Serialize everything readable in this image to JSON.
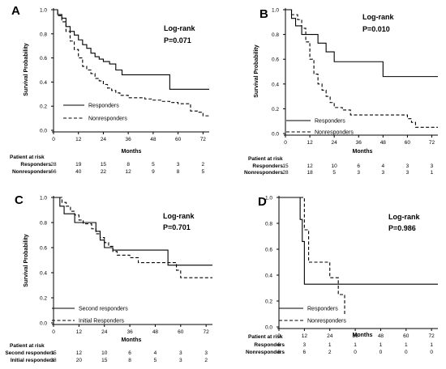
{
  "chart_data": [
    {
      "type": "line",
      "panel_label": "A",
      "annotation": "Log-rank",
      "pvalue": "P=0.071",
      "xlabel": "Months",
      "ylabel": "Survival Probability",
      "xlim": [
        0,
        75
      ],
      "ylim": [
        0,
        1.0
      ],
      "xticks": [
        "0",
        "12",
        "24",
        "36",
        "48",
        "60",
        "72"
      ],
      "yticks": [
        "0.0",
        "0.2",
        "0.4",
        "0.6",
        "0.8",
        "1.0"
      ],
      "series": [
        {
          "name": "Responders",
          "style": "solid",
          "x": [
            0,
            2,
            4,
            6,
            8,
            10,
            12,
            14,
            16,
            18,
            20,
            22,
            24,
            27,
            30,
            33,
            36,
            48,
            56,
            75
          ],
          "y": [
            1.0,
            0.96,
            0.93,
            0.86,
            0.82,
            0.79,
            0.75,
            0.71,
            0.68,
            0.64,
            0.61,
            0.59,
            0.57,
            0.55,
            0.5,
            0.46,
            0.46,
            0.46,
            0.34,
            0.34
          ]
        },
        {
          "name": "Nonresponders",
          "style": "dashed",
          "x": [
            0,
            2,
            4,
            6,
            8,
            10,
            12,
            14,
            16,
            18,
            20,
            22,
            24,
            26,
            28,
            30,
            32,
            36,
            40,
            44,
            48,
            52,
            56,
            60,
            66,
            70,
            72,
            75
          ],
          "y": [
            1.0,
            0.95,
            0.9,
            0.82,
            0.74,
            0.67,
            0.6,
            0.53,
            0.5,
            0.47,
            0.43,
            0.41,
            0.38,
            0.35,
            0.33,
            0.31,
            0.29,
            0.27,
            0.27,
            0.26,
            0.25,
            0.24,
            0.23,
            0.22,
            0.16,
            0.15,
            0.12,
            0.12
          ]
        }
      ],
      "risk_table": {
        "header": "Patient at risk",
        "rows": [
          {
            "label": "Responders",
            "values": [
              "28",
              "19",
              "15",
              "8",
              "5",
              "3",
              "2"
            ]
          },
          {
            "label": "Nonresponders",
            "values": [
              "66",
              "40",
              "22",
              "12",
              "9",
              "8",
              "5"
            ]
          }
        ]
      }
    },
    {
      "type": "line",
      "panel_label": "B",
      "annotation": "Log-rank",
      "pvalue": "P=0.010",
      "xlabel": "Months",
      "ylabel": "Survival Probability",
      "xlim": [
        0,
        75
      ],
      "ylim": [
        0,
        1.0
      ],
      "xticks": [
        "0",
        "12",
        "24",
        "36",
        "48",
        "60",
        "72"
      ],
      "yticks": [
        "0.0",
        "0.2",
        "0.4",
        "0.6",
        "0.8",
        "1.0"
      ],
      "series": [
        {
          "name": "Responders",
          "style": "solid",
          "x": [
            0,
            3,
            5,
            8,
            12,
            16,
            20,
            24,
            30,
            36,
            48,
            75
          ],
          "y": [
            1.0,
            0.93,
            0.87,
            0.8,
            0.8,
            0.73,
            0.66,
            0.58,
            0.58,
            0.58,
            0.46,
            0.46
          ]
        },
        {
          "name": "Nonresponders",
          "style": "dashed",
          "x": [
            0,
            3,
            6,
            8,
            10,
            12,
            14,
            16,
            18,
            20,
            22,
            24,
            28,
            32,
            48,
            60,
            62,
            64,
            75
          ],
          "y": [
            1.0,
            0.96,
            0.92,
            0.85,
            0.74,
            0.6,
            0.48,
            0.4,
            0.35,
            0.3,
            0.25,
            0.21,
            0.19,
            0.15,
            0.15,
            0.12,
            0.09,
            0.05,
            0.05
          ]
        }
      ],
      "risk_table": {
        "header": "Patient at risk",
        "rows": [
          {
            "label": "Responders",
            "values": [
              "15",
              "12",
              "10",
              "6",
              "4",
              "3",
              "3"
            ]
          },
          {
            "label": "Nonresponders",
            "values": [
              "28",
              "18",
              "5",
              "3",
              "3",
              "3",
              "1"
            ]
          }
        ]
      }
    },
    {
      "type": "line",
      "panel_label": "C",
      "annotation": "Log-rank",
      "pvalue": "P=0.701",
      "xlabel": "Months",
      "ylabel": "Survival Probability",
      "xlim": [
        0,
        75
      ],
      "ylim": [
        0,
        1.0
      ],
      "xticks": [
        "0",
        "12",
        "24",
        "36",
        "48",
        "60",
        "72"
      ],
      "yticks": [
        "0.0",
        "0.2",
        "0.4",
        "0.6",
        "0.8",
        "1.0"
      ],
      "series": [
        {
          "name": "Second responders",
          "style": "solid",
          "x": [
            0,
            3,
            5,
            8,
            10,
            12,
            16,
            20,
            22,
            24,
            28,
            32,
            36,
            48,
            54,
            60,
            75
          ],
          "y": [
            1.0,
            0.93,
            0.87,
            0.87,
            0.8,
            0.8,
            0.8,
            0.73,
            0.66,
            0.6,
            0.58,
            0.58,
            0.58,
            0.58,
            0.46,
            0.46,
            0.46
          ]
        },
        {
          "name": "Initial Responders",
          "style": "dashed",
          "x": [
            0,
            4,
            6,
            8,
            10,
            12,
            14,
            18,
            20,
            22,
            24,
            26,
            28,
            30,
            36,
            40,
            44,
            48,
            56,
            58,
            60,
            75
          ],
          "y": [
            1.0,
            0.96,
            0.93,
            0.89,
            0.86,
            0.82,
            0.79,
            0.75,
            0.71,
            0.68,
            0.64,
            0.61,
            0.57,
            0.54,
            0.52,
            0.48,
            0.48,
            0.48,
            0.48,
            0.42,
            0.36,
            0.36
          ]
        }
      ],
      "risk_table": {
        "header": "Patient at risk",
        "rows": [
          {
            "label": "Second responders",
            "values": [
              "15",
              "12",
              "10",
              "6",
              "4",
              "3",
              "3"
            ]
          },
          {
            "label": "Initial responders",
            "values": [
              "28",
              "20",
              "15",
              "8",
              "5",
              "3",
              "2"
            ]
          }
        ]
      }
    },
    {
      "type": "line",
      "panel_label": "D",
      "annotation": "Log-rank",
      "pvalue": "P=0.986",
      "xlabel": "Months",
      "ylabel": "",
      "xlim": [
        0,
        75
      ],
      "ylim": [
        0,
        1.0
      ],
      "xticks": [
        "0",
        "12",
        "24",
        "36",
        "48",
        "60",
        "72"
      ],
      "yticks": [
        "0.0",
        "0.2",
        "0.4",
        "0.6",
        "0.8",
        "1.0"
      ],
      "series": [
        {
          "name": "Responders",
          "style": "solid",
          "x": [
            0,
            9,
            10,
            11,
            12,
            20,
            36,
            75
          ],
          "y": [
            1.0,
            1.0,
            0.83,
            0.66,
            0.33,
            0.33,
            0.33,
            0.33
          ]
        },
        {
          "name": "Nonresponders",
          "style": "dashed",
          "x": [
            0,
            10,
            12,
            14,
            20,
            24,
            28,
            31,
            32
          ],
          "y": [
            1.0,
            1.0,
            0.75,
            0.5,
            0.5,
            0.38,
            0.25,
            0.1,
            0.1
          ]
        }
      ],
      "risk_table": {
        "header": "Patient at risk",
        "rows": [
          {
            "label": "Responders",
            "values": [
              "6",
              "3",
              "1",
              "1",
              "1",
              "1",
              "1"
            ]
          },
          {
            "label": "Nonresponders",
            "values": [
              "8",
              "6",
              "2",
              "0",
              "0",
              "0",
              "0"
            ]
          }
        ]
      }
    }
  ]
}
